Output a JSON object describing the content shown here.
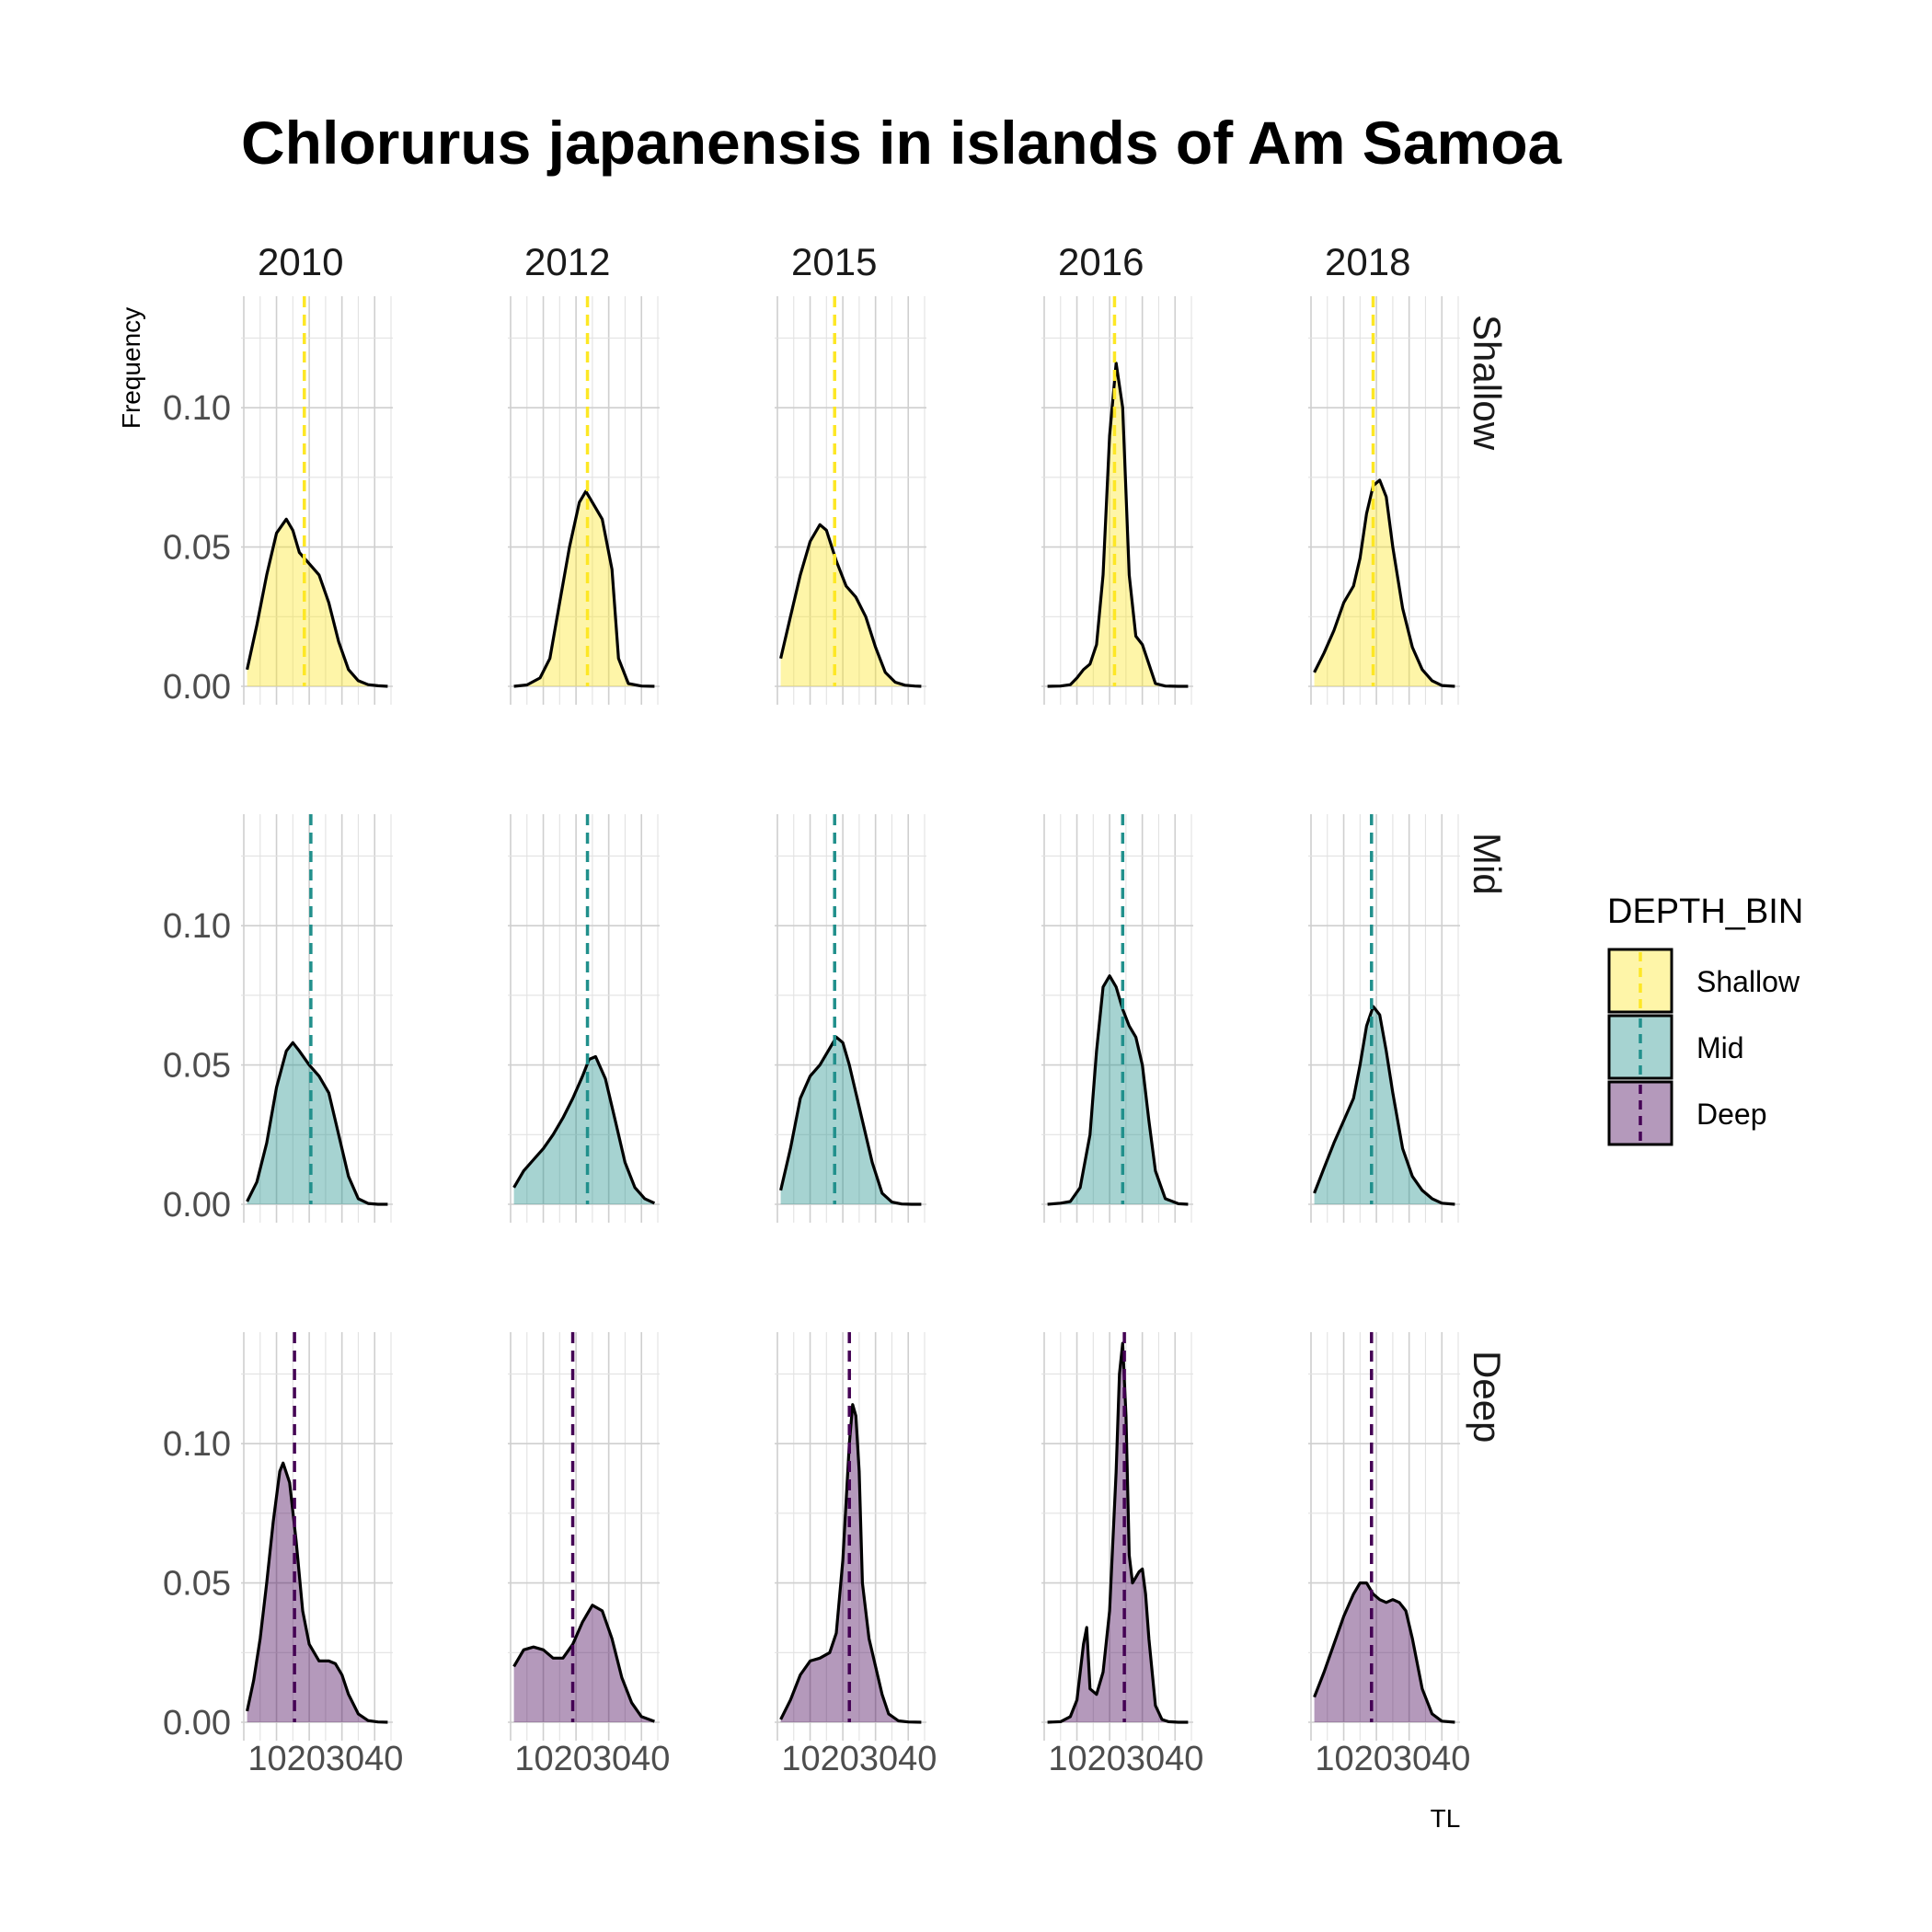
{
  "colors": {
    "Shallow": "#FDE725",
    "Mid": "#21908C",
    "Deep": "#440154",
    "curve": "#000000",
    "grid": "#cfcfcf"
  },
  "chart_data": {
    "type": "area",
    "subtype": "faceted density",
    "title": "Chlorurus japanensis in islands of Am Samoa",
    "xlabel": "TL",
    "ylabel": "Frequency",
    "xlim": [
      0,
      45
    ],
    "ylim": [
      0,
      0.14
    ],
    "x_ticks": [
      "10",
      "20",
      "30",
      "40"
    ],
    "x_ticks_label": "10203040",
    "y_ticks": [
      "0.00",
      "0.05",
      "0.10"
    ],
    "grid": true,
    "columns": [
      "2010",
      "2012",
      "2015",
      "2016",
      "2018"
    ],
    "rows": [
      "Shallow",
      "Mid",
      "Deep"
    ],
    "legend": {
      "title": "DEPTH_BIN",
      "position": "right",
      "entries": [
        "Shallow",
        "Mid",
        "Deep"
      ]
    },
    "panels": [
      {
        "year": "2010",
        "depth": "Shallow",
        "mean": 18.5,
        "x": [
          1,
          4,
          7,
          10,
          13,
          15,
          17,
          20,
          23,
          26,
          29,
          32,
          35,
          38,
          41,
          44
        ],
        "y": [
          0.006,
          0.022,
          0.04,
          0.055,
          0.06,
          0.056,
          0.048,
          0.044,
          0.04,
          0.03,
          0.016,
          0.006,
          0.002,
          0.0006,
          0.0002,
          0.0
        ]
      },
      {
        "year": "2012",
        "depth": "Shallow",
        "mean": 23.5,
        "x": [
          1,
          5,
          9,
          12,
          15,
          18,
          21,
          23,
          25,
          28,
          31,
          33,
          36,
          40,
          44
        ],
        "y": [
          0.0,
          0.0005,
          0.003,
          0.01,
          0.03,
          0.05,
          0.066,
          0.07,
          0.066,
          0.06,
          0.042,
          0.01,
          0.001,
          0.0001,
          0.0
        ]
      },
      {
        "year": "2015",
        "depth": "Shallow",
        "mean": 17.5,
        "x": [
          1,
          4,
          7,
          10,
          13,
          15,
          18,
          21,
          24,
          27,
          30,
          33,
          36,
          39,
          42,
          44
        ],
        "y": [
          0.01,
          0.025,
          0.04,
          0.052,
          0.058,
          0.056,
          0.045,
          0.036,
          0.032,
          0.025,
          0.014,
          0.005,
          0.0015,
          0.0004,
          0.0001,
          0.0
        ]
      },
      {
        "year": "2016",
        "depth": "Shallow",
        "mean": 21.5,
        "x": [
          1,
          5,
          8,
          10,
          12,
          14,
          16,
          18,
          20,
          22,
          24,
          26,
          28,
          30,
          32,
          34,
          37,
          41,
          44
        ],
        "y": [
          0.0,
          0.0001,
          0.0006,
          0.003,
          0.006,
          0.008,
          0.015,
          0.04,
          0.09,
          0.116,
          0.1,
          0.04,
          0.018,
          0.015,
          0.008,
          0.001,
          0.0001,
          0.0,
          0.0
        ]
      },
      {
        "year": "2018",
        "depth": "Shallow",
        "mean": 19.0,
        "x": [
          1,
          4,
          7,
          10,
          13,
          15,
          17,
          19,
          21,
          23,
          25,
          28,
          31,
          34,
          37,
          40,
          44
        ],
        "y": [
          0.005,
          0.012,
          0.02,
          0.03,
          0.036,
          0.046,
          0.062,
          0.072,
          0.074,
          0.068,
          0.05,
          0.028,
          0.014,
          0.006,
          0.002,
          0.0003,
          0.0
        ]
      },
      {
        "year": "2010",
        "depth": "Mid",
        "mean": 20.5,
        "x": [
          1,
          4,
          7,
          10,
          13,
          15,
          17,
          20,
          23,
          26,
          29,
          32,
          35,
          38,
          41,
          44
        ],
        "y": [
          0.001,
          0.008,
          0.022,
          0.042,
          0.055,
          0.058,
          0.055,
          0.05,
          0.046,
          0.04,
          0.025,
          0.01,
          0.002,
          0.0003,
          0.0,
          0.0
        ]
      },
      {
        "year": "2012",
        "depth": "Mid",
        "mean": 23.5,
        "x": [
          1,
          4,
          7,
          10,
          13,
          16,
          19,
          22,
          24,
          26,
          29,
          32,
          35,
          38,
          41,
          44
        ],
        "y": [
          0.006,
          0.012,
          0.016,
          0.02,
          0.025,
          0.031,
          0.038,
          0.046,
          0.052,
          0.053,
          0.045,
          0.03,
          0.015,
          0.006,
          0.002,
          0.0004
        ]
      },
      {
        "year": "2015",
        "depth": "Mid",
        "mean": 17.5,
        "x": [
          1,
          4,
          7,
          10,
          13,
          16,
          18,
          20,
          22,
          24,
          26,
          29,
          32,
          35,
          38,
          41,
          44
        ],
        "y": [
          0.005,
          0.02,
          0.038,
          0.046,
          0.05,
          0.056,
          0.06,
          0.058,
          0.05,
          0.04,
          0.03,
          0.015,
          0.004,
          0.0008,
          0.0001,
          0.0,
          0.0
        ]
      },
      {
        "year": "2016",
        "depth": "Mid",
        "mean": 24.0,
        "x": [
          1,
          5,
          8,
          11,
          14,
          16,
          18,
          20,
          22,
          24,
          26,
          28,
          30,
          32,
          34,
          37,
          41,
          44
        ],
        "y": [
          0.0,
          0.0004,
          0.001,
          0.006,
          0.025,
          0.055,
          0.078,
          0.082,
          0.078,
          0.07,
          0.064,
          0.06,
          0.05,
          0.03,
          0.012,
          0.002,
          0.0002,
          0.0
        ]
      },
      {
        "year": "2018",
        "depth": "Mid",
        "mean": 18.5,
        "x": [
          1,
          4,
          7,
          10,
          13,
          15,
          17,
          19,
          21,
          23,
          25,
          28,
          31,
          34,
          37,
          40,
          44
        ],
        "y": [
          0.004,
          0.013,
          0.022,
          0.03,
          0.038,
          0.05,
          0.064,
          0.071,
          0.068,
          0.055,
          0.04,
          0.02,
          0.01,
          0.005,
          0.002,
          0.0004,
          0.0
        ]
      },
      {
        "year": "2010",
        "depth": "Deep",
        "mean": 15.5,
        "x": [
          1,
          3,
          5,
          7,
          9,
          11,
          12,
          14,
          16,
          18,
          20,
          23,
          26,
          28,
          30,
          32,
          35,
          38,
          41,
          44
        ],
        "y": [
          0.004,
          0.015,
          0.03,
          0.05,
          0.072,
          0.09,
          0.093,
          0.086,
          0.065,
          0.04,
          0.028,
          0.022,
          0.022,
          0.021,
          0.017,
          0.01,
          0.003,
          0.0006,
          0.0001,
          0.0
        ]
      },
      {
        "year": "2012",
        "depth": "Deep",
        "mean": 19.0,
        "x": [
          1,
          4,
          7,
          10,
          13,
          16,
          19,
          22,
          25,
          28,
          31,
          34,
          37,
          40,
          44
        ],
        "y": [
          0.02,
          0.026,
          0.027,
          0.026,
          0.023,
          0.023,
          0.028,
          0.036,
          0.042,
          0.04,
          0.03,
          0.016,
          0.007,
          0.002,
          0.0003
        ]
      },
      {
        "year": "2015",
        "depth": "Deep",
        "mean": 22.0,
        "x": [
          1,
          4,
          7,
          10,
          13,
          16,
          18,
          20,
          22,
          23,
          24,
          25,
          26,
          28,
          30,
          32,
          34,
          37,
          40,
          44
        ],
        "y": [
          0.001,
          0.008,
          0.017,
          0.022,
          0.023,
          0.025,
          0.032,
          0.058,
          0.1,
          0.114,
          0.11,
          0.09,
          0.05,
          0.03,
          0.02,
          0.01,
          0.003,
          0.0005,
          0.0001,
          0.0
        ]
      },
      {
        "year": "2016",
        "depth": "Deep",
        "mean": 24.5,
        "x": [
          1,
          5,
          8,
          10,
          12,
          13,
          14,
          16,
          18,
          20,
          22,
          23,
          24,
          25,
          26,
          27,
          28,
          29,
          30,
          31,
          32,
          34,
          36,
          38,
          41,
          44
        ],
        "y": [
          0.0,
          0.0002,
          0.002,
          0.008,
          0.028,
          0.034,
          0.012,
          0.01,
          0.018,
          0.04,
          0.09,
          0.125,
          0.136,
          0.11,
          0.06,
          0.05,
          0.052,
          0.054,
          0.055,
          0.046,
          0.03,
          0.006,
          0.001,
          0.0002,
          0.0,
          0.0
        ]
      },
      {
        "year": "2018",
        "depth": "Deep",
        "mean": 18.5,
        "x": [
          1,
          4,
          7,
          10,
          13,
          15,
          17,
          19,
          21,
          23,
          25,
          27,
          29,
          31,
          34,
          37,
          40,
          44
        ],
        "y": [
          0.009,
          0.018,
          0.028,
          0.038,
          0.046,
          0.05,
          0.05,
          0.046,
          0.044,
          0.043,
          0.044,
          0.043,
          0.04,
          0.03,
          0.012,
          0.003,
          0.0004,
          0.0
        ]
      }
    ]
  }
}
